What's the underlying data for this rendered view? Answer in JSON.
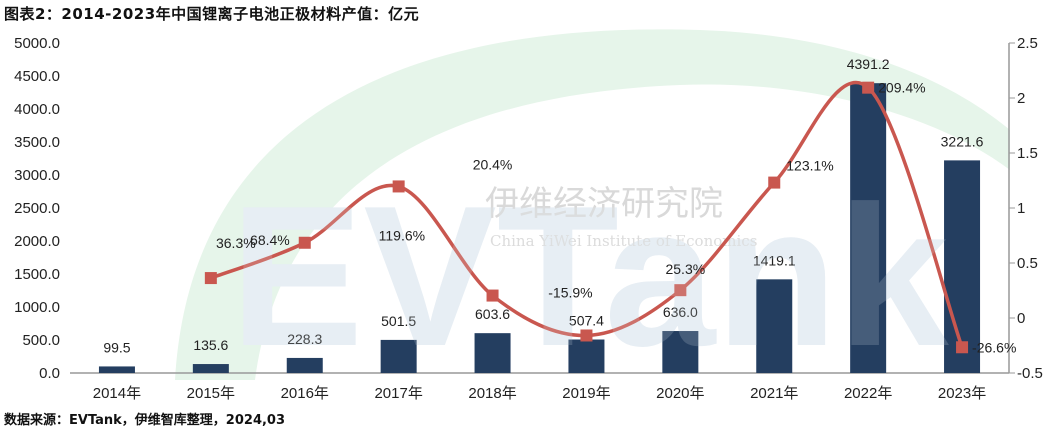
{
  "title": "图表2：2014-2023年中国锂离子电池正极材料产值：亿元",
  "source": "数据来源：EVTank，伊维智库整理，2024,03",
  "watermark": {
    "logo": "EVTank",
    "cn": "伊维经济研究院",
    "en": "China YiWei Institute of Economics"
  },
  "colors": {
    "bar": "#243e60",
    "line": "#c9574f",
    "marker": "#c9574f"
  },
  "chart_data": {
    "type": "bar+line",
    "categories": [
      "2014年",
      "2015年",
      "2016年",
      "2017年",
      "2018年",
      "2019年",
      "2020年",
      "2021年",
      "2022年",
      "2023年"
    ],
    "series": [
      {
        "type": "bar",
        "axis": "left",
        "values": [
          99.5,
          135.6,
          228.3,
          501.5,
          603.6,
          507.4,
          636.0,
          1419.1,
          4391.2,
          3221.6
        ],
        "labels": [
          "99.5",
          "135.6",
          "228.3",
          "501.5",
          "603.6",
          "507.4",
          "636.0",
          "1419.1",
          "4391.2",
          "3221.6"
        ]
      },
      {
        "type": "line",
        "axis": "right",
        "smooth": true,
        "values": [
          null,
          0.363,
          0.684,
          1.196,
          0.204,
          -0.159,
          0.253,
          1.231,
          2.094,
          -0.266
        ],
        "labels": [
          "",
          "36.3%",
          "68.4%",
          "119.6%",
          "20.4%",
          "-15.9%",
          "25.3%",
          "123.1%",
          "209.4%",
          "-26.6%"
        ]
      }
    ],
    "y_left": {
      "min": 0,
      "max": 5000,
      "step": 500,
      "ticks": [
        "0.0",
        "500.0",
        "1000.0",
        "1500.0",
        "2000.0",
        "2500.0",
        "3000.0",
        "3500.0",
        "4000.0",
        "4500.0",
        "5000.0"
      ]
    },
    "y_right": {
      "min": -0.5,
      "max": 2.5,
      "step": 0.5,
      "ticks": [
        "-0.5",
        "0",
        "0.5",
        "1",
        "1.5",
        "2",
        "2.5"
      ]
    },
    "grid": false,
    "legend": "none"
  }
}
